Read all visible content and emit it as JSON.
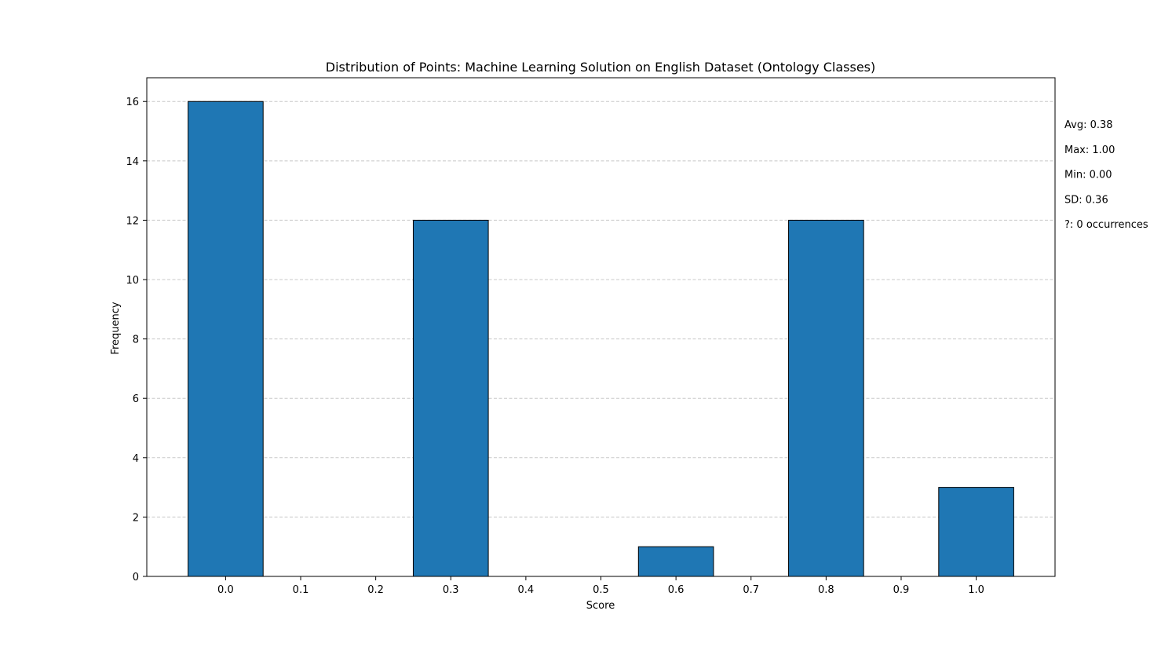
{
  "chart_data": {
    "type": "bar",
    "title": "Distribution of Points: Machine Learning Solution on English Dataset (Ontology Classes)",
    "xlabel": "Score",
    "ylabel": "Frequency",
    "x": [
      0.0,
      0.3,
      0.6,
      0.8,
      1.0
    ],
    "values": [
      16,
      12,
      1,
      12,
      3
    ],
    "bar_width": 0.1,
    "xlim": [
      -0.105,
      1.105
    ],
    "ylim": [
      0,
      16.8
    ],
    "x_ticks": [
      0.0,
      0.1,
      0.2,
      0.3,
      0.4,
      0.5,
      0.6,
      0.7,
      0.8,
      0.9,
      1.0
    ],
    "x_tick_labels": [
      "0.0",
      "0.1",
      "0.2",
      "0.3",
      "0.4",
      "0.5",
      "0.6",
      "0.7",
      "0.8",
      "0.9",
      "1.0"
    ],
    "y_ticks": [
      0,
      2,
      4,
      6,
      8,
      10,
      12,
      14,
      16
    ],
    "y_tick_labels": [
      "0",
      "2",
      "4",
      "6",
      "8",
      "10",
      "12",
      "14",
      "16"
    ],
    "grid": "horizontal dashed",
    "bar_color": "#1f77b4",
    "bar_edge_color": "#000000",
    "grid_color": "#c8c8c8",
    "stats": [
      "Avg: 0.38",
      "Max: 1.00",
      "Min: 0.00",
      "SD: 0.36",
      "?: 0 occurrences"
    ]
  }
}
